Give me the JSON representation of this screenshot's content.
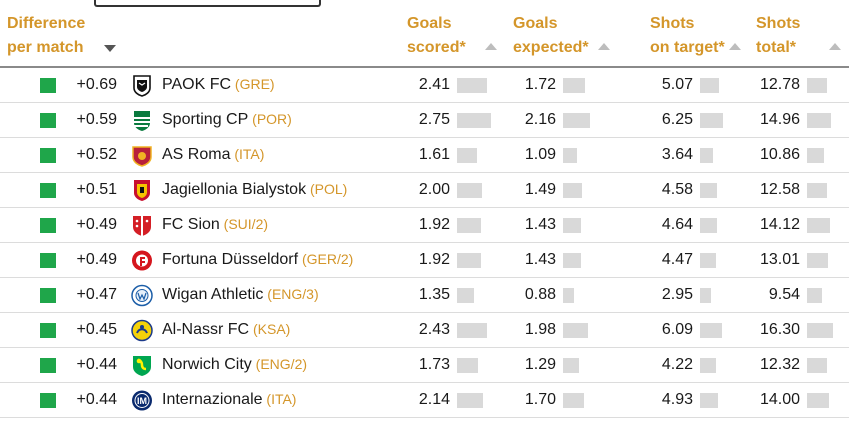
{
  "headers": {
    "difference": [
      "Difference",
      "per match"
    ],
    "goals_scored": [
      "Goals",
      "scored*"
    ],
    "goals_expected": [
      "Goals",
      "expected*"
    ],
    "shots_on_target": [
      "Shots",
      "on target*"
    ],
    "shots_total": [
      "Shots",
      "total*"
    ]
  },
  "colors": {
    "accent": "#d4962a",
    "positive": "#1fa64a",
    "bar": "#d9d9d9"
  },
  "rows": [
    {
      "diff": "+0.69",
      "team": "PAOK FC",
      "country": "(GRE)",
      "logo": "paok-logo",
      "goals_scored": 2.41,
      "goals_expected": 1.72,
      "shots_on_target": 5.07,
      "shots_total": 12.78
    },
    {
      "diff": "+0.59",
      "team": "Sporting CP",
      "country": "(POR)",
      "logo": "sporting-logo",
      "goals_scored": 2.75,
      "goals_expected": 2.16,
      "shots_on_target": 6.25,
      "shots_total": 14.96
    },
    {
      "diff": "+0.52",
      "team": "AS Roma",
      "country": "(ITA)",
      "logo": "roma-logo",
      "goals_scored": 1.61,
      "goals_expected": 1.09,
      "shots_on_target": 3.64,
      "shots_total": 10.86
    },
    {
      "diff": "+0.51",
      "team": "Jagiellonia Bialystok",
      "country": "(POL)",
      "logo": "jagiellonia-logo",
      "goals_scored": 2.0,
      "goals_expected": 1.49,
      "shots_on_target": 4.58,
      "shots_total": 12.58
    },
    {
      "diff": "+0.49",
      "team": "FC Sion",
      "country": "(SUI/2)",
      "logo": "sion-logo",
      "goals_scored": 1.92,
      "goals_expected": 1.43,
      "shots_on_target": 4.64,
      "shots_total": 14.12
    },
    {
      "diff": "+0.49",
      "team": "Fortuna Düsseldorf",
      "country": "(GER/2)",
      "logo": "fortuna-logo",
      "goals_scored": 1.92,
      "goals_expected": 1.43,
      "shots_on_target": 4.47,
      "shots_total": 13.01
    },
    {
      "diff": "+0.47",
      "team": "Wigan Athletic",
      "country": "(ENG/3)",
      "logo": "wigan-logo",
      "goals_scored": 1.35,
      "goals_expected": 0.88,
      "shots_on_target": 2.95,
      "shots_total": 9.54
    },
    {
      "diff": "+0.45",
      "team": "Al-Nassr FC",
      "country": "(KSA)",
      "logo": "alnassr-logo",
      "goals_scored": 2.43,
      "goals_expected": 1.98,
      "shots_on_target": 6.09,
      "shots_total": 16.3
    },
    {
      "diff": "+0.44",
      "team": "Norwich City",
      "country": "(ENG/2)",
      "logo": "norwich-logo",
      "goals_scored": 1.73,
      "goals_expected": 1.29,
      "shots_on_target": 4.22,
      "shots_total": 12.32
    },
    {
      "diff": "+0.44",
      "team": "Internazionale",
      "country": "(ITA)",
      "logo": "inter-logo",
      "goals_scored": 2.14,
      "goals_expected": 1.7,
      "shots_on_target": 4.93,
      "shots_total": 14.0
    }
  ]
}
